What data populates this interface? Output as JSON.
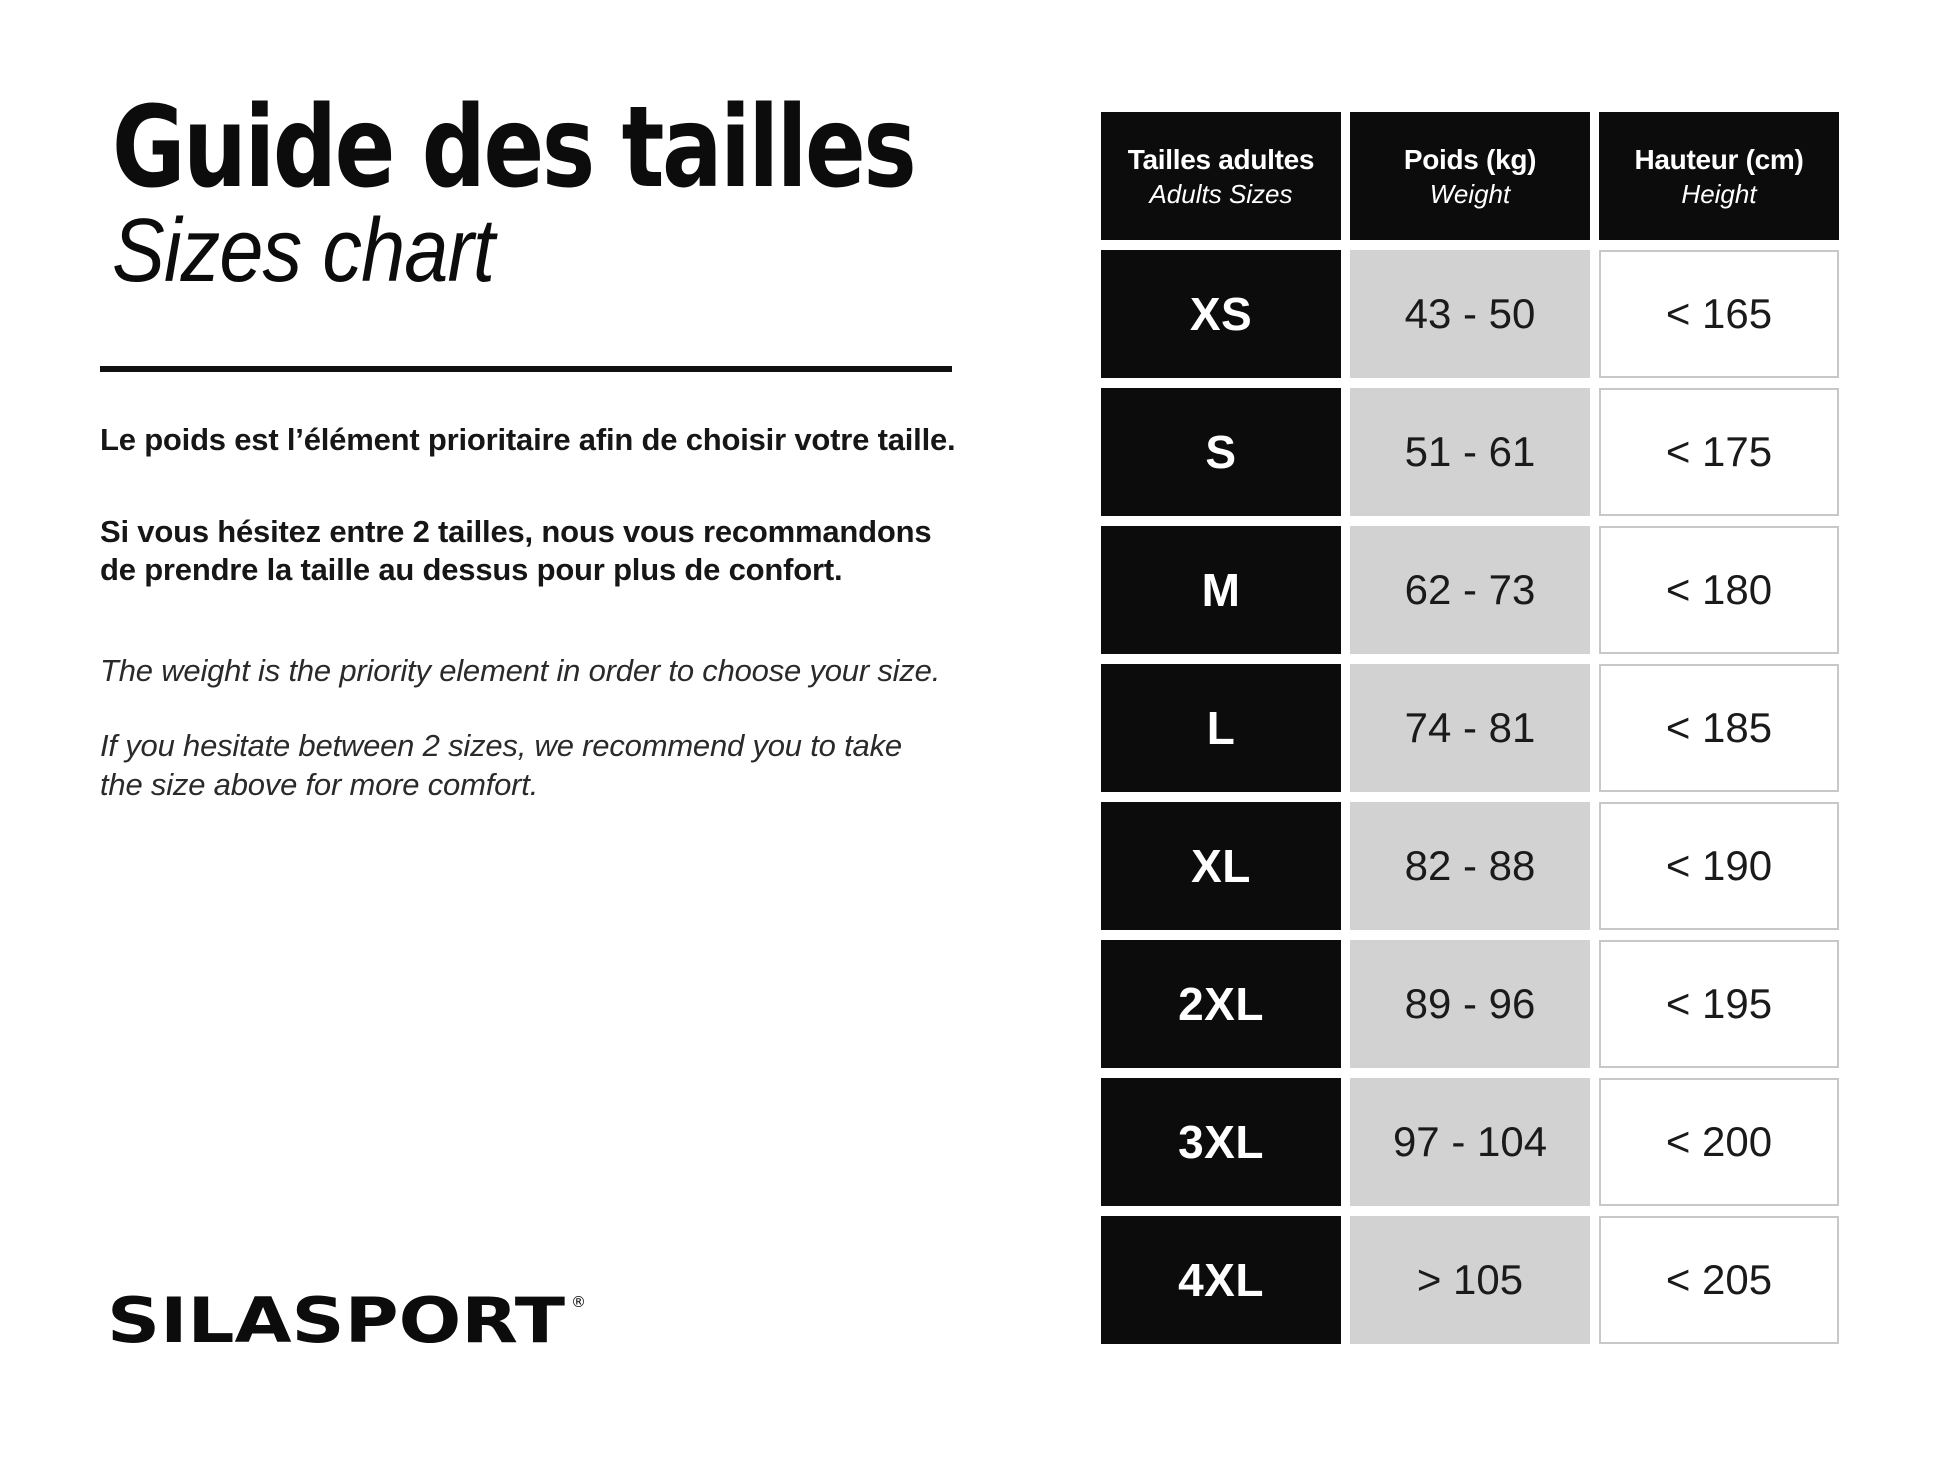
{
  "left": {
    "title_fr": "Guide des tailles",
    "title_en": "Sizes chart",
    "fr_p1": "Le poids est l’élément prioritaire afin de choisir votre taille.",
    "fr_p2_l1": "Si vous hésitez entre 2 tailles, nous vous recommandons",
    "fr_p2_l2": "de prendre la taille au dessus pour plus de confort.",
    "en_p1": "The weight is the priority element in order to choose your size.",
    "en_p2_l1": "If you hesitate between 2 sizes, we recommend you to take",
    "en_p2_l2": "the size above for more comfort.",
    "logo_text": "SILASPORT",
    "logo_reg": "®"
  },
  "table": {
    "headers": [
      {
        "fr": "Tailles adultes",
        "en": "Adults Sizes"
      },
      {
        "fr": "Poids (kg)",
        "en": "Weight"
      },
      {
        "fr": "Hauteur (cm)",
        "en": "Height"
      }
    ],
    "rows": [
      {
        "size": "XS",
        "weight": "43 - 50",
        "height": "< 165"
      },
      {
        "size": "S",
        "weight": "51 - 61",
        "height": "< 175"
      },
      {
        "size": "M",
        "weight": "62 - 73",
        "height": "< 180"
      },
      {
        "size": "L",
        "weight": "74 - 81",
        "height": "< 185"
      },
      {
        "size": "XL",
        "weight": "82 - 88",
        "height": "< 190"
      },
      {
        "size": "2XL",
        "weight": "89 - 96",
        "height": "< 195"
      },
      {
        "size": "3XL",
        "weight": "97 - 104",
        "height": "< 200"
      },
      {
        "size": "4XL",
        "weight": "> 105",
        "height": "< 205"
      }
    ]
  },
  "chart_data": {
    "type": "table",
    "title": "Guide des tailles / Sizes chart",
    "columns": [
      "Tailles adultes / Adults Sizes",
      "Poids (kg) / Weight",
      "Hauteur (cm) / Height"
    ],
    "rows": [
      [
        "XS",
        "43 - 50",
        "< 165"
      ],
      [
        "S",
        "51 - 61",
        "< 175"
      ],
      [
        "M",
        "62 - 73",
        "< 180"
      ],
      [
        "L",
        "74 - 81",
        "< 185"
      ],
      [
        "XL",
        "82 - 88",
        "< 190"
      ],
      [
        "2XL",
        "89 - 96",
        "< 195"
      ],
      [
        "3XL",
        "97 - 104",
        "< 200"
      ],
      [
        "4XL",
        "> 105",
        "< 205"
      ]
    ]
  },
  "colors": {
    "cell_black": "#0c0c0c",
    "cell_gray": "#d2d2d2",
    "cell_border": "#c8c8c8",
    "background": "#ffffff"
  }
}
